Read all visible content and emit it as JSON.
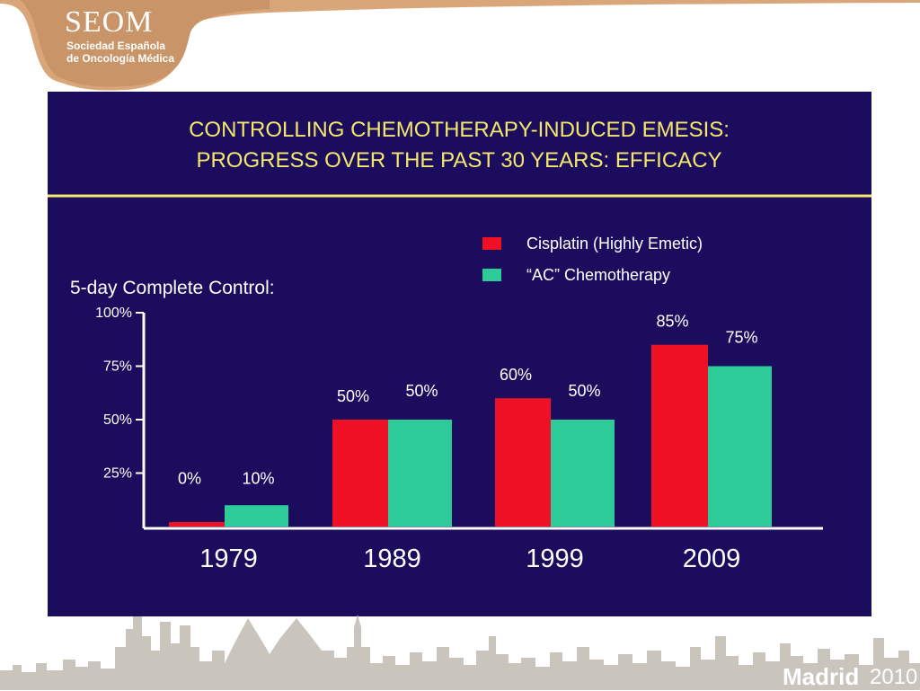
{
  "logo": {
    "name": "SEOM",
    "line1": "Sociedad Española",
    "line2": "de Oncología Médica"
  },
  "footer": {
    "city": "Madrid",
    "year": "2010"
  },
  "slide": {
    "title_line1": "CONTROLLING CHEMOTHERAPY-INDUCED EMESIS:",
    "title_line2": "PROGRESS OVER THE PAST 30 YEARS:  EFFICACY"
  },
  "colors": {
    "background": "#1c0c5e",
    "title": "#f2e96a",
    "series_cisplatin": "#ee1125",
    "series_ac": "#2ccb98",
    "axis": "#ffffff",
    "brand_tan": "#d9a679"
  },
  "chart_data": {
    "type": "bar",
    "title": "5-day Complete Control:",
    "categories": [
      "1979",
      "1989",
      "1999",
      "2009"
    ],
    "series": [
      {
        "name": "Cisplatin (Highly Emetic)",
        "values": [
          0,
          50,
          60,
          85
        ],
        "labels": [
          "0%",
          "50%",
          "60%",
          "85%"
        ]
      },
      {
        "name": "“AC” Chemotherapy",
        "values": [
          10,
          50,
          50,
          75
        ],
        "labels": [
          "10%",
          "50%",
          "50%",
          "75%"
        ]
      }
    ],
    "yticks": [
      "25%",
      "50%",
      "75%",
      "100%"
    ],
    "ylim": [
      0,
      100
    ],
    "legend_position": "top-right",
    "grid": false
  }
}
